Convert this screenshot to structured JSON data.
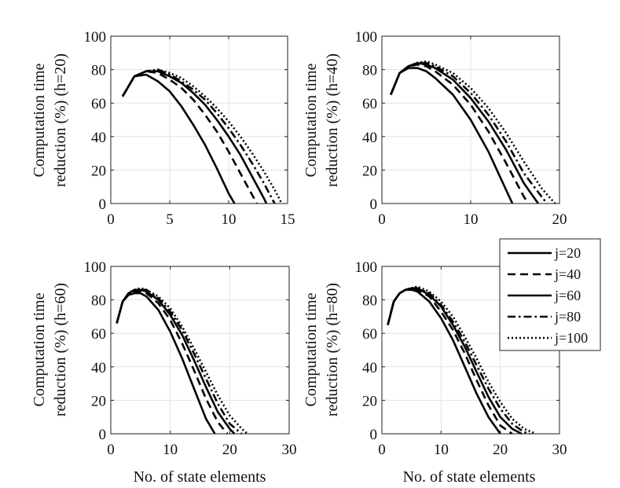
{
  "chart_data": [
    {
      "type": "line",
      "ylabel_line1": "Computation time",
      "ylabel_line2": "reduction (%) (h=20)",
      "xlabel": "",
      "xlim": [
        0,
        15
      ],
      "ylim": [
        0,
        100
      ],
      "xticks": [
        0,
        5,
        10,
        15
      ],
      "yticks": [
        0,
        20,
        40,
        60,
        80,
        100
      ],
      "grid": true,
      "series": [
        {
          "name": "j=20",
          "style": "solid",
          "x": [
            1,
            2,
            3,
            4,
            5,
            6,
            7,
            8,
            9,
            10,
            10.5
          ],
          "y": [
            64,
            76,
            77,
            73,
            67,
            58,
            47,
            35,
            21,
            6,
            0
          ]
        },
        {
          "name": "j=40",
          "style": "dashed",
          "x": [
            1,
            2,
            3,
            4,
            5,
            6,
            7,
            8,
            9,
            10,
            11,
            12,
            12.4
          ],
          "y": [
            64,
            76,
            79,
            78,
            74,
            69,
            62,
            53,
            43,
            31,
            18,
            5,
            0
          ]
        },
        {
          "name": "j=60",
          "style": "solid",
          "x": [
            1,
            2,
            3,
            4,
            5,
            6,
            7,
            8,
            9,
            10,
            11,
            12,
            13,
            13.2
          ],
          "y": [
            64,
            76,
            79,
            79,
            76,
            72,
            66,
            59,
            50,
            40,
            29,
            16,
            3,
            0
          ]
        },
        {
          "name": "j=80",
          "style": "dashdot",
          "x": [
            1,
            2,
            3,
            4,
            5,
            6,
            7,
            8,
            9,
            10,
            11,
            12,
            13,
            13.9
          ],
          "y": [
            64,
            76,
            79,
            80,
            77,
            73,
            68,
            62,
            54,
            45,
            35,
            24,
            12,
            0
          ]
        },
        {
          "name": "j=100",
          "style": "dotted",
          "x": [
            1,
            2,
            3,
            4,
            5,
            6,
            7,
            8,
            9,
            10,
            11,
            12,
            13,
            14,
            14.5
          ],
          "y": [
            64,
            76,
            79,
            80,
            78,
            75,
            70,
            64,
            57,
            49,
            40,
            30,
            19,
            7,
            0
          ]
        }
      ]
    },
    {
      "type": "line",
      "ylabel_line1": "Computation time",
      "ylabel_line2": "reduction (%) (h=40)",
      "xlabel": "",
      "xlim": [
        0,
        20
      ],
      "ylim": [
        0,
        100
      ],
      "xticks": [
        0,
        10,
        20
      ],
      "yticks": [
        0,
        20,
        40,
        60,
        80,
        100
      ],
      "grid": true,
      "series": [
        {
          "name": "j=20",
          "style": "solid",
          "x": [
            1,
            2,
            3,
            4,
            5,
            6,
            8,
            10,
            12,
            14,
            14.7
          ],
          "y": [
            65,
            78,
            81,
            81,
            79,
            75,
            65,
            50,
            31,
            8,
            0
          ]
        },
        {
          "name": "j=40",
          "style": "dashed",
          "x": [
            1,
            2,
            3,
            4,
            5,
            6,
            8,
            10,
            12,
            14,
            16,
            16.5
          ],
          "y": [
            65,
            78,
            82,
            83,
            82,
            79,
            71,
            59,
            43,
            24,
            4,
            0
          ]
        },
        {
          "name": "j=60",
          "style": "solid",
          "x": [
            1,
            2,
            3,
            4,
            5,
            6,
            8,
            10,
            12,
            14,
            16,
            17.6
          ],
          "y": [
            65,
            78,
            82,
            84,
            83,
            81,
            74,
            63,
            49,
            32,
            12,
            0
          ]
        },
        {
          "name": "j=80",
          "style": "dashdot",
          "x": [
            1,
            2,
            3,
            4,
            5,
            6,
            8,
            10,
            12,
            14,
            16,
            18,
            18.6
          ],
          "y": [
            65,
            78,
            82,
            84,
            84,
            82,
            76,
            66,
            53,
            37,
            18,
            4,
            0
          ]
        },
        {
          "name": "j=100",
          "style": "dotted",
          "x": [
            1,
            2,
            3,
            4,
            5,
            6,
            8,
            10,
            12,
            14,
            16,
            18,
            19.5
          ],
          "y": [
            65,
            78,
            82,
            84,
            85,
            83,
            78,
            69,
            57,
            42,
            25,
            9,
            0
          ]
        }
      ]
    },
    {
      "type": "line",
      "ylabel_line1": "Computation time",
      "ylabel_line2": "reduction (%)  (h=60)",
      "xlabel": "No. of state elements",
      "xlim": [
        0,
        30
      ],
      "ylim": [
        0,
        100
      ],
      "xticks": [
        0,
        10,
        20,
        30
      ],
      "yticks": [
        0,
        20,
        40,
        60,
        80,
        100
      ],
      "grid": true,
      "series": [
        {
          "name": "j=20",
          "style": "solid",
          "x": [
            1,
            2,
            3,
            4,
            5,
            6,
            8,
            10,
            12,
            14,
            16,
            17.5
          ],
          "y": [
            66,
            79,
            83,
            84,
            84,
            82,
            74,
            61,
            45,
            27,
            9,
            0
          ]
        },
        {
          "name": "j=40",
          "style": "dashed",
          "x": [
            1,
            2,
            3,
            4,
            5,
            6,
            8,
            10,
            12,
            14,
            16,
            18,
            19.6
          ],
          "y": [
            66,
            79,
            84,
            85,
            85,
            84,
            78,
            68,
            54,
            38,
            21,
            7,
            0
          ]
        },
        {
          "name": "j=60",
          "style": "solid",
          "x": [
            1,
            2,
            3,
            4,
            5,
            6,
            8,
            10,
            12,
            14,
            16,
            18,
            20,
            20.8
          ],
          "y": [
            66,
            79,
            84,
            86,
            86,
            85,
            80,
            71,
            59,
            44,
            28,
            13,
            3,
            0
          ]
        },
        {
          "name": "j=80",
          "style": "dashdot",
          "x": [
            1,
            2,
            3,
            4,
            5,
            6,
            8,
            10,
            12,
            14,
            16,
            18,
            20,
            22
          ],
          "y": [
            66,
            79,
            84,
            86,
            86,
            86,
            81,
            73,
            62,
            48,
            33,
            18,
            6,
            0
          ]
        },
        {
          "name": "j=100",
          "style": "dotted",
          "x": [
            1,
            2,
            3,
            4,
            5,
            6,
            8,
            10,
            12,
            14,
            16,
            18,
            20,
            22,
            23
          ],
          "y": [
            66,
            79,
            84,
            86,
            87,
            86,
            82,
            75,
            64,
            51,
            37,
            23,
            11,
            3,
            0
          ]
        }
      ]
    },
    {
      "type": "line",
      "ylabel_line1": "Computation time",
      "ylabel_line2": "reduction (%) (h=80)",
      "xlabel": "No. of state elements",
      "xlim": [
        0,
        30
      ],
      "ylim": [
        0,
        100
      ],
      "xticks": [
        0,
        10,
        20,
        30
      ],
      "yticks": [
        0,
        20,
        40,
        60,
        80,
        100
      ],
      "grid": true,
      "series": [
        {
          "name": "j=20",
          "style": "solid",
          "x": [
            1,
            2,
            3,
            4,
            5,
            6,
            8,
            10,
            12,
            14,
            16,
            18,
            20
          ],
          "y": [
            65,
            79,
            84,
            86,
            86,
            85,
            79,
            69,
            56,
            40,
            24,
            10,
            0
          ]
        },
        {
          "name": "j=40",
          "style": "dashed",
          "x": [
            1,
            2,
            3,
            4,
            5,
            6,
            8,
            10,
            12,
            14,
            16,
            18,
            20,
            22
          ],
          "y": [
            65,
            79,
            84,
            86,
            87,
            86,
            82,
            73,
            62,
            48,
            32,
            17,
            5,
            0
          ]
        },
        {
          "name": "j=60",
          "style": "solid",
          "x": [
            1,
            2,
            3,
            4,
            5,
            6,
            8,
            10,
            12,
            14,
            16,
            18,
            20,
            22,
            23.6
          ],
          "y": [
            65,
            79,
            84,
            86,
            87,
            87,
            83,
            76,
            65,
            52,
            37,
            22,
            10,
            3,
            0
          ]
        },
        {
          "name": "j=80",
          "style": "dashdot",
          "x": [
            1,
            2,
            3,
            4,
            5,
            6,
            8,
            10,
            12,
            14,
            16,
            18,
            20,
            22,
            24,
            25
          ],
          "y": [
            65,
            79,
            84,
            86,
            87,
            87,
            84,
            77,
            67,
            55,
            41,
            27,
            15,
            6,
            1,
            0
          ]
        },
        {
          "name": "j=100",
          "style": "dotted",
          "x": [
            1,
            2,
            3,
            4,
            5,
            6,
            8,
            10,
            12,
            14,
            16,
            18,
            20,
            22,
            24,
            26
          ],
          "y": [
            65,
            79,
            84,
            86,
            87,
            88,
            85,
            79,
            70,
            58,
            45,
            31,
            19,
            9,
            3,
            0
          ]
        }
      ]
    }
  ],
  "legend": {
    "entries": [
      {
        "label": "j=20",
        "style": "solid"
      },
      {
        "label": "j=40",
        "style": "dashed"
      },
      {
        "label": "j=60",
        "style": "solid"
      },
      {
        "label": "j=80",
        "style": "dashdot"
      },
      {
        "label": "j=100",
        "style": "dotted"
      }
    ],
    "placement": "between right panels"
  }
}
